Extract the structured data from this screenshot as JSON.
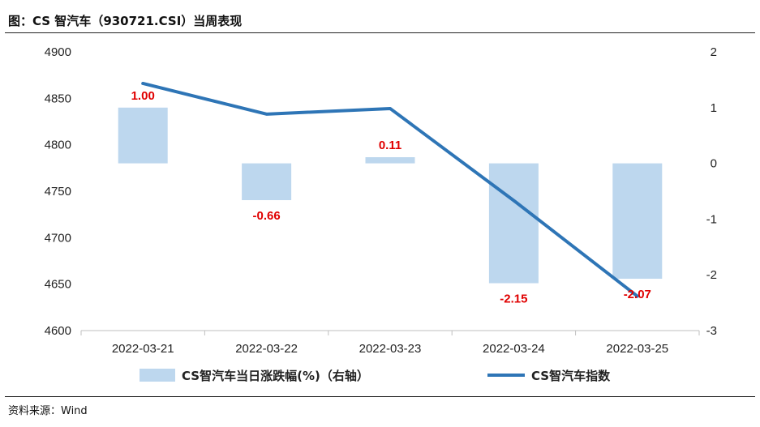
{
  "title": "图：CS 智汽车（930721.CSI）当周表现",
  "source": "资料来源：Wind",
  "chart_data": {
    "type": "bar+line",
    "categories": [
      "2022-03-21",
      "2022-03-22",
      "2022-03-23",
      "2022-03-24",
      "2022-03-25"
    ],
    "series": [
      {
        "name": "CS智汽车当日涨跌幅(%)（右轴）",
        "type": "bar",
        "axis": "right",
        "values": [
          1.0,
          -0.66,
          0.11,
          -2.15,
          -2.07
        ],
        "labels": [
          "1.00",
          "-0.66",
          "0.11",
          "-2.15",
          "-2.07"
        ],
        "color": "#bdd7ee"
      },
      {
        "name": "CS智汽车指数",
        "type": "line",
        "axis": "left",
        "values": [
          4866,
          4833,
          4839,
          4740,
          4637
        ],
        "color": "#2e75b6"
      }
    ],
    "y_left": {
      "ylim": [
        4600,
        4900
      ],
      "ticks": [
        "4600",
        "4650",
        "4700",
        "4750",
        "4800",
        "4850",
        "4900"
      ]
    },
    "y_right": {
      "ylim": [
        -3,
        2
      ],
      "ticks": [
        "-3",
        "-2",
        "-1",
        "0",
        "1",
        "2"
      ]
    },
    "grid": false,
    "legend_position": "bottom",
    "label_color": "#e00000"
  }
}
